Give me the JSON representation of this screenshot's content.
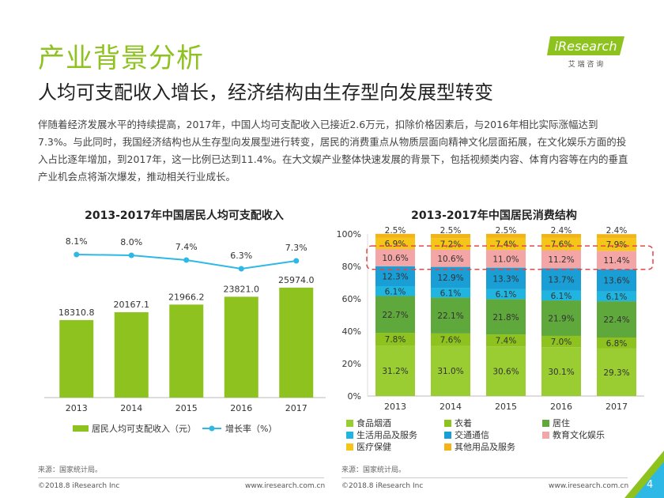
{
  "header": {
    "title": "产业背景分析",
    "subtitle": "人均可支配收入增长，经济结构由生存型向发展型转变",
    "logo_text": "iResearch",
    "logo_sub": "艾 瑞 咨 询",
    "brand_color": "#8DC21F"
  },
  "description": "伴随着经济发展水平的持续提高，2017年，中国人均可支配收入已接近2.6万元，扣除价格因素后，与2016年相比实际涨幅达到7.3%。与此同时，我国经济结构也从生存型向发展型进行转变，居民的消费重点从物质层面向精神文化层面拓展，在文化娱乐方面的投入占比逐年增加，到2017年，这一比例已达到11.4%。在大文娱产业整体快速发展的背景下，包括视频类内容、体育内容等在内的垂直产业机会点将渐次爆发，推动相关行业成长。",
  "chart_data": [
    {
      "type": "bar",
      "title": "2013-2017年中国居民人均可支配收入",
      "categories": [
        "2013",
        "2014",
        "2015",
        "2016",
        "2017"
      ],
      "series": [
        {
          "name": "居民人均可支配收入（元）",
          "type": "bar",
          "values": [
            18310.8,
            20167.1,
            21966.2,
            23821.0,
            25974.0
          ],
          "labels": [
            "18310.8",
            "20167.1",
            "21966.2",
            "23821.0",
            "25974.0"
          ],
          "color": "#8DC21F"
        },
        {
          "name": "增长率（%）",
          "type": "line",
          "values": [
            8.1,
            8.0,
            7.4,
            6.3,
            7.3
          ],
          "labels": [
            "8.1%",
            "8.0%",
            "7.4%",
            "6.3%",
            "7.3%"
          ],
          "color": "#2EB8E6"
        }
      ],
      "legend": [
        "居民人均可支配收入（元）",
        "增长率（%）"
      ]
    },
    {
      "type": "bar",
      "stacked": true,
      "title": "2013-2017年中国居民消费结构",
      "categories": [
        "2013",
        "2014",
        "2015",
        "2016",
        "2017"
      ],
      "y_ticks": [
        "0%",
        "20%",
        "40%",
        "60%",
        "80%",
        "100%"
      ],
      "ylim": [
        0,
        100
      ],
      "series": [
        {
          "name": "食品烟酒",
          "color": "#9ACD32",
          "values": [
            31.2,
            31.0,
            30.6,
            30.1,
            29.3
          ],
          "labels": [
            "31.2%",
            "31.0%",
            "30.6%",
            "30.1%",
            "29.3%"
          ]
        },
        {
          "name": "衣着",
          "color": "#8DC21F",
          "values": [
            7.8,
            7.6,
            7.4,
            7.0,
            6.8
          ],
          "labels": [
            "7.8%",
            "7.6%",
            "7.4%",
            "7.0%",
            "6.8%"
          ]
        },
        {
          "name": "居住",
          "color": "#5FA83C",
          "values": [
            22.7,
            22.1,
            21.8,
            21.9,
            22.4
          ],
          "labels": [
            "22.7%",
            "22.1%",
            "21.8%",
            "21.9%",
            "22.4%"
          ]
        },
        {
          "name": "生活用品及服务",
          "color": "#1FB5E0",
          "values": [
            6.1,
            6.1,
            6.1,
            6.1,
            6.1
          ],
          "labels": [
            "6.1%",
            "6.1%",
            "6.1%",
            "6.1%",
            "6.1%"
          ]
        },
        {
          "name": "交通通信",
          "color": "#1A9ED6",
          "values": [
            12.3,
            12.9,
            13.3,
            13.7,
            13.6
          ],
          "labels": [
            "12.3%",
            "12.9%",
            "13.3%",
            "13.7%",
            "13.6%"
          ]
        },
        {
          "name": "教育文化娱乐",
          "color": "#F4A6A6",
          "values": [
            10.6,
            10.6,
            11.0,
            11.2,
            11.4
          ],
          "labels": [
            "10.6%",
            "10.6%",
            "11.0%",
            "11.2%",
            "11.4%"
          ]
        },
        {
          "name": "医疗保健",
          "color": "#F5C518",
          "values": [
            6.9,
            7.2,
            7.4,
            7.6,
            7.9
          ],
          "labels": [
            "6.9%",
            "7.2%",
            "7.4%",
            "7.6%",
            "7.9%"
          ]
        },
        {
          "name": "其他用品及服务",
          "color": "#F2B418",
          "values": [
            2.5,
            2.5,
            2.5,
            2.4,
            2.4
          ],
          "labels": [
            "2.5%",
            "2.5%",
            "2.5%",
            "2.4%",
            "2.4%"
          ]
        }
      ],
      "highlight_series": "教育文化娱乐",
      "highlight_color": "#E0474C",
      "legend": [
        "食品烟酒",
        "衣着",
        "居住",
        "生活用品及服务",
        "交通通信",
        "教育文化娱乐",
        "医疗保健",
        "其他用品及服务"
      ]
    }
  ],
  "sources": {
    "left": "来源：国家统计局。",
    "right": "来源：国家统计局。"
  },
  "footer": {
    "copyright_left": "©2018.8 iResearch Inc",
    "url_left": "www.iresearch.com.cn",
    "copyright_right": "©2018.8 iResearch Inc",
    "url_right": "www.iresearch.com.cn",
    "page_number": "4"
  }
}
